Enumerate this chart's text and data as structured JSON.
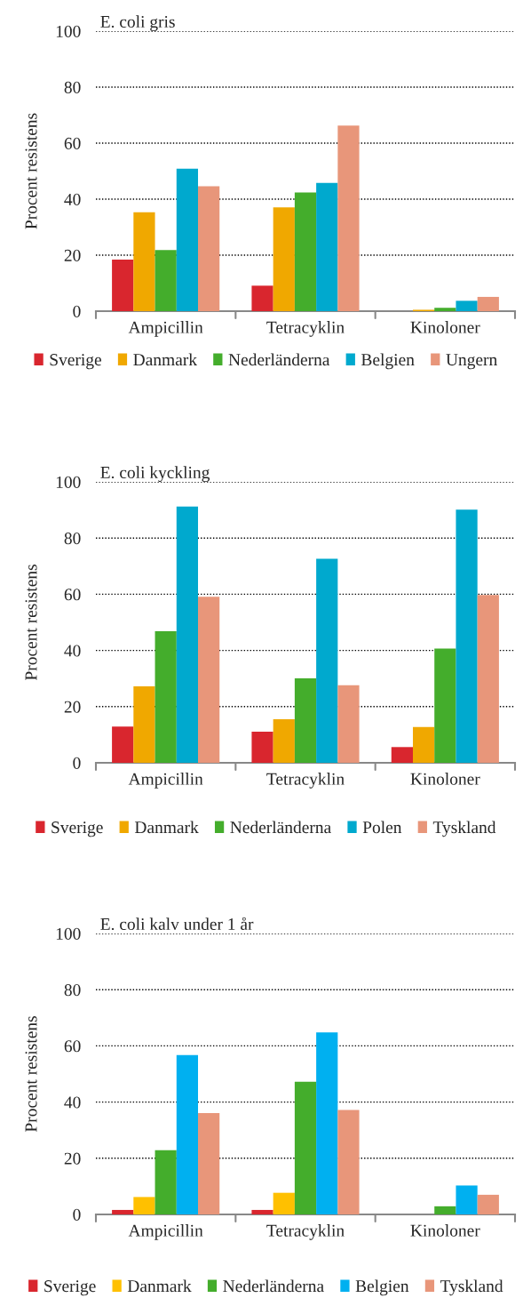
{
  "chart_data": [
    {
      "type": "bar",
      "title": "E. coli gris",
      "ylabel": "Procent resistens",
      "categories": [
        "Ampicillin",
        "Tetracyklin",
        "Kinoloner"
      ],
      "ylim": [
        0,
        100
      ],
      "yticks": [
        0,
        20,
        40,
        60,
        80,
        100
      ],
      "grid": "y",
      "legend": "bottom",
      "series": [
        {
          "name": "Sverige",
          "color": "#d9262e",
          "values": [
            18.4,
            9.1,
            null
          ]
        },
        {
          "name": "Danmark",
          "color": "#f0a800",
          "values": [
            35.3,
            37.1,
            0.5
          ]
        },
        {
          "name": "Nederländerna",
          "color": "#44ad2c",
          "values": [
            21.8,
            42.4,
            1.2
          ]
        },
        {
          "name": "Belgien",
          "color": "#00a9ce",
          "values": [
            50.9,
            45.8,
            3.7
          ]
        },
        {
          "name": "Ungern",
          "color": "#e8967a",
          "values": [
            44.6,
            66.3,
            5.1
          ]
        }
      ]
    },
    {
      "type": "bar",
      "title": "E. coli kyckling",
      "ylabel": "Procent resistens",
      "categories": [
        "Ampicillin",
        "Tetracyklin",
        "Kinoloner"
      ],
      "ylim": [
        0,
        100
      ],
      "yticks": [
        0,
        20,
        40,
        60,
        80,
        100
      ],
      "grid": "y",
      "legend": "bottom",
      "series": [
        {
          "name": "Sverige",
          "color": "#d9262e",
          "values": [
            12.9,
            11.1,
            5.6
          ]
        },
        {
          "name": "Danmark",
          "color": "#f0a800",
          "values": [
            27.2,
            15.5,
            12.7
          ]
        },
        {
          "name": "Nederländerna",
          "color": "#44ad2c",
          "values": [
            46.8,
            30.1,
            40.7
          ]
        },
        {
          "name": "Polen",
          "color": "#00a9ce",
          "values": [
            91.2,
            72.6,
            90.1
          ]
        },
        {
          "name": "Tyskland",
          "color": "#e8967a",
          "values": [
            59.1,
            27.6,
            59.7
          ]
        }
      ]
    },
    {
      "type": "bar",
      "title": "E. coli kalv under 1 år",
      "ylabel": "Procent resistens",
      "categories": [
        "Ampicillin",
        "Tetracyklin",
        "Kinoloner"
      ],
      "ylim": [
        0,
        100
      ],
      "yticks": [
        0,
        20,
        40,
        60,
        80,
        100
      ],
      "grid": "y",
      "legend": "bottom",
      "series": [
        {
          "name": "Sverige",
          "color": "#d9262e",
          "values": [
            1.6,
            1.6,
            null
          ]
        },
        {
          "name": "Danmark",
          "color": "#ffc000",
          "values": [
            6.2,
            7.7,
            null
          ]
        },
        {
          "name": "Nederländerna",
          "color": "#44ad2c",
          "values": [
            22.9,
            47.2,
            2.9
          ]
        },
        {
          "name": "Belgien",
          "color": "#00b0f0",
          "values": [
            56.7,
            64.8,
            10.3
          ]
        },
        {
          "name": "Tyskland",
          "color": "#e8967a",
          "values": [
            36.1,
            37.2,
            7.0
          ]
        }
      ]
    }
  ]
}
